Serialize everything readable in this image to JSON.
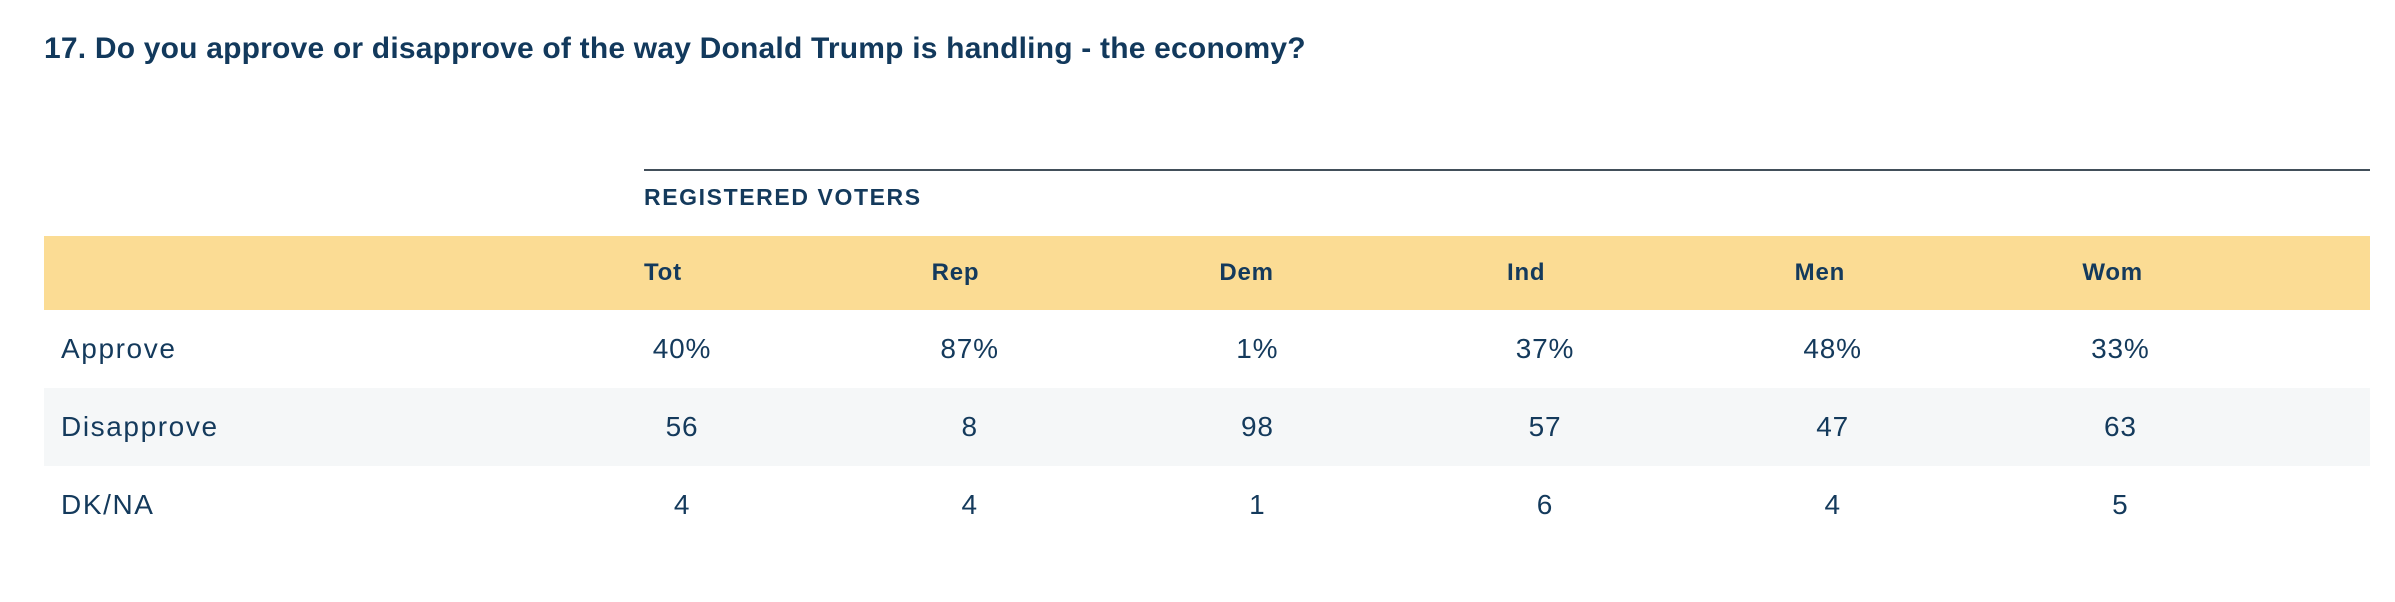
{
  "title": "17. Do you approve or disapprove of the way Donald Trump is handling - the economy?",
  "table": {
    "section_label": "REGISTERED VOTERS",
    "columns": [
      "Tot",
      "Rep",
      "Dem",
      "Ind",
      "Men",
      "Wom"
    ],
    "rows": [
      {
        "label": "Approve",
        "values": [
          "40%",
          "87%",
          "1%",
          "37%",
          "48%",
          "33%"
        ]
      },
      {
        "label": "Disapprove",
        "values": [
          "56",
          "8",
          "98",
          "57",
          "47",
          "63"
        ]
      },
      {
        "label": "DK/NA",
        "values": [
          "4",
          "4",
          "1",
          "6",
          "4",
          "5"
        ]
      }
    ]
  },
  "colors": {
    "text": "#143a5c",
    "header_band": "#fbdc94",
    "alt_row": "#f5f7f8",
    "rule": "#424f5a"
  },
  "chart_data": {
    "type": "table",
    "title": "17. Do you approve or disapprove of the way Donald Trump is handling - the economy?",
    "section": "REGISTERED VOTERS",
    "columns": [
      "Tot",
      "Rep",
      "Dem",
      "Ind",
      "Men",
      "Wom"
    ],
    "rows": [
      {
        "label": "Approve",
        "values": [
          40,
          87,
          1,
          37,
          48,
          33
        ],
        "unit": "%"
      },
      {
        "label": "Disapprove",
        "values": [
          56,
          8,
          98,
          57,
          47,
          63
        ],
        "unit": "%"
      },
      {
        "label": "DK/NA",
        "values": [
          4,
          4,
          1,
          6,
          4,
          5
        ],
        "unit": "%"
      }
    ],
    "layout": "poll crosstab, header band highlighted, alternating row shading"
  }
}
